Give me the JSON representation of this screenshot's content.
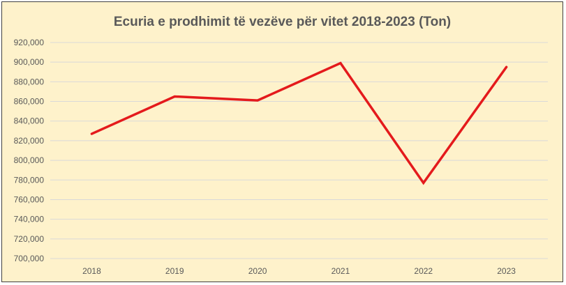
{
  "chart_data": {
    "type": "line",
    "title": "Ecuria e prodhimit të vezëve për vitet 2018-2023 (Ton)",
    "xlabel": "",
    "ylabel": "",
    "categories": [
      "2018",
      "2019",
      "2020",
      "2021",
      "2022",
      "2023"
    ],
    "series": [
      {
        "values": [
          827000,
          865000,
          861000,
          899000,
          777000,
          895000
        ]
      }
    ],
    "ylim": [
      700000,
      920000
    ],
    "ytick_step": 20000,
    "ytick_labels": [
      "700,000",
      "720,000",
      "740,000",
      "760,000",
      "780,000",
      "800,000",
      "820,000",
      "840,000",
      "860,000",
      "880,000",
      "900,000",
      "920,000"
    ],
    "grid": true,
    "legend": "none",
    "colors": {
      "line": "#e41a1c",
      "grid": "#d9d9d9",
      "background": "#fef2cb",
      "text": "#595959"
    }
  }
}
